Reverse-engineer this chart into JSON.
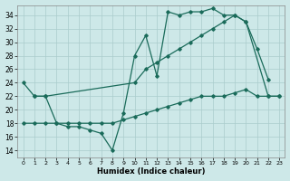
{
  "xlabel": "Humidex (Indice chaleur)",
  "xlim": [
    -0.5,
    23.5
  ],
  "ylim": [
    13,
    35.5
  ],
  "yticks": [
    14,
    16,
    18,
    20,
    22,
    24,
    26,
    28,
    30,
    32,
    34
  ],
  "xtick_labels": [
    "0",
    "1",
    "2",
    "3",
    "4",
    "5",
    "6",
    "7",
    "8",
    "9",
    "10",
    "11",
    "12",
    "13",
    "14",
    "15",
    "16",
    "17",
    "18",
    "19",
    "20",
    "21",
    "22",
    "23"
  ],
  "bg_color": "#cde8e8",
  "line_color": "#1a6b5a",
  "grid_color": "#aacccc",
  "line1_x": [
    0,
    1,
    2,
    3,
    4,
    5,
    6,
    7,
    8,
    9,
    10,
    11,
    12,
    13,
    14,
    15,
    16,
    17,
    18,
    19,
    20,
    21,
    22
  ],
  "line1_y": [
    24,
    22,
    22,
    18,
    17.5,
    17.5,
    17,
    16.5,
    14,
    19.5,
    28,
    31,
    25,
    34.5,
    34,
    34.5,
    34.5,
    35,
    34,
    34,
    33,
    29,
    24.5
  ],
  "line2_x": [
    1,
    2,
    10,
    11,
    12,
    13,
    14,
    15,
    16,
    17,
    18,
    19,
    20,
    22,
    23
  ],
  "line2_y": [
    22,
    22,
    24,
    26,
    27,
    28,
    29,
    30,
    31,
    32,
    33,
    34,
    33,
    22,
    22
  ],
  "line3_x": [
    0,
    1,
    2,
    3,
    4,
    5,
    6,
    7,
    8,
    9,
    10,
    11,
    12,
    13,
    14,
    15,
    16,
    17,
    18,
    19,
    20,
    21,
    22,
    23
  ],
  "line3_y": [
    18,
    18,
    18,
    18,
    18,
    18,
    18,
    18,
    18,
    18.5,
    19,
    19.5,
    20,
    20.5,
    21,
    21.5,
    22,
    22,
    22,
    22.5,
    23,
    22,
    22,
    22
  ]
}
